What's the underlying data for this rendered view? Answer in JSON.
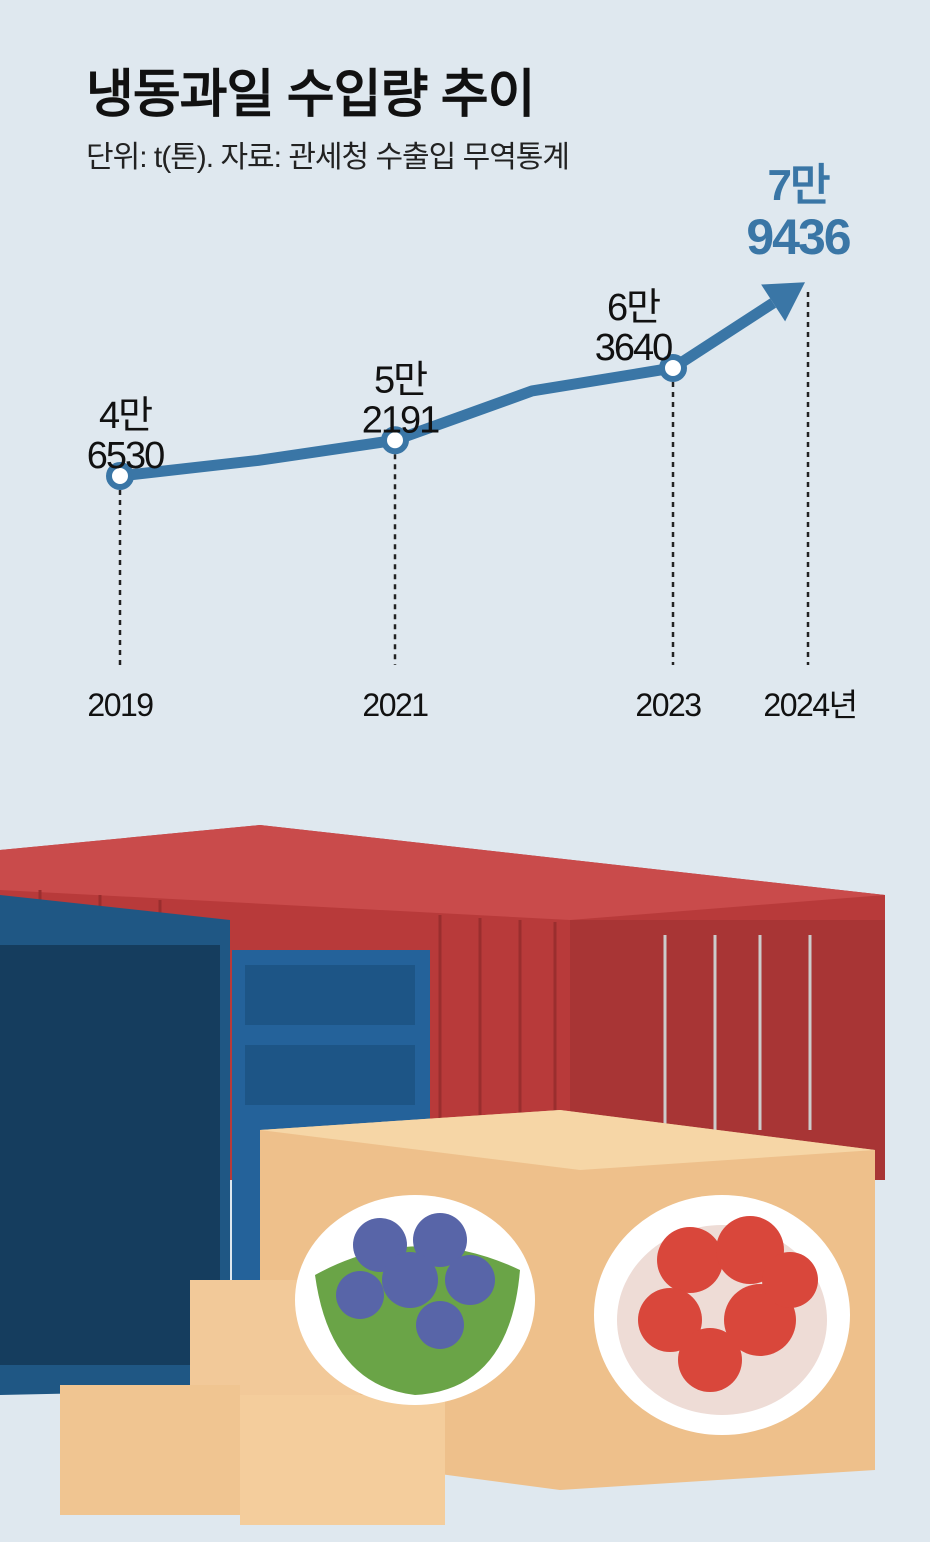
{
  "chart_data": {
    "type": "line",
    "title": "냉동과일 수입량 추이",
    "subtitle": "단위: t(톤). 자료: 관세청 수출입 무역통계",
    "x_labels": [
      "2019",
      "2021",
      "2023",
      "2024년"
    ],
    "points": [
      {
        "year": 2019,
        "value": 46530,
        "label_top": "4만",
        "label_bottom": "6530",
        "marker": "circle"
      },
      {
        "year": 2020,
        "value": 49000,
        "estimated": true
      },
      {
        "year": 2021,
        "value": 52191,
        "label_top": "5만",
        "label_bottom": "2191",
        "marker": "circle"
      },
      {
        "year": 2022,
        "value": 60000,
        "estimated": true
      },
      {
        "year": 2023,
        "value": 63640,
        "label_top": "6만",
        "label_bottom": "3640",
        "marker": "circle"
      },
      {
        "year": 2024,
        "value": 79436,
        "label_top": "7만",
        "label_bottom": "9436",
        "marker": "arrow",
        "highlight": true
      }
    ],
    "unit": "t",
    "grid": false,
    "line_color": "#3a76a6",
    "highlight_color": "#3a76a6",
    "background_color": "#dfe8ef"
  }
}
